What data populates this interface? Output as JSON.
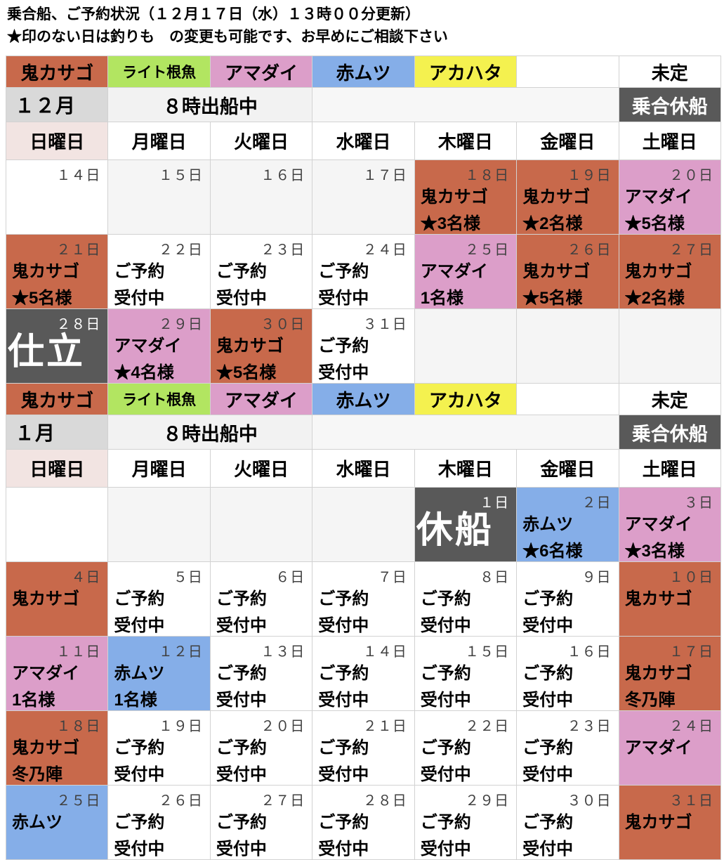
{
  "header": {
    "title": "乗合船、ご予約状況（１２月１７日（水）１３時００分更新）",
    "subtitle": "★印のない日は釣りも　の変更も可能です、お早めにご相談下さい"
  },
  "colors": {
    "orange": "#C8694B",
    "green": "#B2E561",
    "pink": "#DC9EC9",
    "blue": "#85AEE8",
    "yellow": "#F4F14F",
    "dark": "#595959",
    "white": "#FFFFFF",
    "empty": "#F5F5F5",
    "month_bg": "#D9D9D9",
    "sunday_header_bg": "#F2E4E2",
    "note_bg": "#F2F2F2",
    "date_text": "#404040"
  },
  "legend": {
    "items": [
      {
        "label": "鬼カサゴ",
        "color": "orange"
      },
      {
        "label": "ライト根魚",
        "color": "green"
      },
      {
        "label": "アマダイ",
        "color": "pink"
      },
      {
        "label": "赤ムツ",
        "color": "blue"
      },
      {
        "label": "アカハタ",
        "color": "yellow"
      },
      {
        "label": "",
        "color": "white"
      },
      {
        "label": "未定",
        "color": "white"
      }
    ]
  },
  "day_headers": [
    "日曜日",
    "月曜日",
    "火曜日",
    "水曜日",
    "木曜日",
    "金曜日",
    "土曜日"
  ],
  "months": [
    {
      "name": "１２月",
      "departure_note": "８時出船中",
      "closed_note": "乗合休船",
      "weeks": [
        [
          {
            "date": "１４日",
            "lines": [],
            "bg": "white"
          },
          {
            "date": "１５日",
            "lines": [],
            "bg": "empty"
          },
          {
            "date": "１６日",
            "lines": [],
            "bg": "empty"
          },
          {
            "date": "１７日",
            "lines": [],
            "bg": "empty"
          },
          {
            "date": "１８日",
            "lines": [
              "鬼カサゴ",
              "★3名様"
            ],
            "bg": "orange"
          },
          {
            "date": "１９日",
            "lines": [
              "鬼カサゴ",
              "★2名様"
            ],
            "bg": "orange"
          },
          {
            "date": "２０日",
            "lines": [
              "アマダイ",
              "★5名様"
            ],
            "bg": "pink"
          }
        ],
        [
          {
            "date": "２１日",
            "lines": [
              "鬼カサゴ",
              "★5名様"
            ],
            "bg": "orange"
          },
          {
            "date": "２２日",
            "lines": [
              "ご予約",
              "受付中"
            ],
            "bg": "white"
          },
          {
            "date": "２３日",
            "lines": [
              "ご予約",
              "受付中"
            ],
            "bg": "white"
          },
          {
            "date": "２４日",
            "lines": [
              "ご予約",
              "受付中"
            ],
            "bg": "white"
          },
          {
            "date": "２５日",
            "lines": [
              "アマダイ",
              "1名様"
            ],
            "bg": "pink"
          },
          {
            "date": "２６日",
            "lines": [
              "鬼カサゴ",
              "★5名様"
            ],
            "bg": "orange"
          },
          {
            "date": "２７日",
            "lines": [
              "鬼カサゴ",
              "★2名様"
            ],
            "bg": "orange"
          }
        ],
        [
          {
            "date": "２８日",
            "lines": [],
            "big": "仕立",
            "bg": "dark"
          },
          {
            "date": "２９日",
            "lines": [
              "アマダイ",
              "★4名様"
            ],
            "bg": "pink"
          },
          {
            "date": "３０日",
            "lines": [
              "鬼カサゴ",
              "★5名様"
            ],
            "bg": "orange"
          },
          {
            "date": "３１日",
            "lines": [
              "ご予約",
              "受付中"
            ],
            "bg": "white"
          },
          {
            "date": "",
            "lines": [],
            "bg": "empty"
          },
          {
            "date": "",
            "lines": [],
            "bg": "empty"
          },
          {
            "date": "",
            "lines": [],
            "bg": "empty"
          }
        ]
      ]
    },
    {
      "name": "１月",
      "departure_note": "８時出船中",
      "closed_note": "乗合休船",
      "weeks": [
        [
          {
            "date": "",
            "lines": [],
            "bg": "white"
          },
          {
            "date": "",
            "lines": [],
            "bg": "empty"
          },
          {
            "date": "",
            "lines": [],
            "bg": "empty"
          },
          {
            "date": "",
            "lines": [],
            "bg": "empty"
          },
          {
            "date": "１日",
            "lines": [],
            "big": "休船",
            "bg": "dark"
          },
          {
            "date": "２日",
            "lines": [
              "赤ムツ",
              "★6名様"
            ],
            "bg": "blue"
          },
          {
            "date": "３日",
            "lines": [
              "アマダイ",
              "★3名様"
            ],
            "bg": "pink"
          }
        ],
        [
          {
            "date": "４日",
            "lines": [
              "鬼カサゴ"
            ],
            "bg": "orange"
          },
          {
            "date": "５日",
            "lines": [
              "ご予約",
              "受付中"
            ],
            "bg": "white"
          },
          {
            "date": "６日",
            "lines": [
              "ご予約",
              "受付中"
            ],
            "bg": "white"
          },
          {
            "date": "７日",
            "lines": [
              "ご予約",
              "受付中"
            ],
            "bg": "white"
          },
          {
            "date": "８日",
            "lines": [
              "ご予約",
              "受付中"
            ],
            "bg": "white"
          },
          {
            "date": "９日",
            "lines": [
              "ご予約",
              "受付中"
            ],
            "bg": "white"
          },
          {
            "date": "１０日",
            "lines": [
              "鬼カサゴ"
            ],
            "bg": "orange"
          }
        ],
        [
          {
            "date": "１１日",
            "lines": [
              "アマダイ",
              "1名様"
            ],
            "bg": "pink"
          },
          {
            "date": "１２日",
            "lines": [
              "赤ムツ",
              "1名様"
            ],
            "bg": "blue"
          },
          {
            "date": "１３日",
            "lines": [
              "ご予約",
              "受付中"
            ],
            "bg": "white"
          },
          {
            "date": "１４日",
            "lines": [
              "ご予約",
              "受付中"
            ],
            "bg": "white"
          },
          {
            "date": "１５日",
            "lines": [
              "ご予約",
              "受付中"
            ],
            "bg": "white"
          },
          {
            "date": "１６日",
            "lines": [
              "ご予約",
              "受付中"
            ],
            "bg": "white"
          },
          {
            "date": "１７日",
            "lines": [
              "鬼カサゴ",
              "冬乃陣"
            ],
            "bg": "orange"
          }
        ],
        [
          {
            "date": "１８日",
            "lines": [
              "鬼カサゴ",
              "冬乃陣"
            ],
            "bg": "orange"
          },
          {
            "date": "１９日",
            "lines": [
              "ご予約",
              "受付中"
            ],
            "bg": "white"
          },
          {
            "date": "２０日",
            "lines": [
              "ご予約",
              "受付中"
            ],
            "bg": "white"
          },
          {
            "date": "２１日",
            "lines": [
              "ご予約",
              "受付中"
            ],
            "bg": "white"
          },
          {
            "date": "２２日",
            "lines": [
              "ご予約",
              "受付中"
            ],
            "bg": "white"
          },
          {
            "date": "２３日",
            "lines": [
              "ご予約",
              "受付中"
            ],
            "bg": "white"
          },
          {
            "date": "２４日",
            "lines": [
              "アマダイ"
            ],
            "bg": "pink"
          }
        ],
        [
          {
            "date": "２５日",
            "lines": [
              "赤ムツ"
            ],
            "bg": "blue"
          },
          {
            "date": "２６日",
            "lines": [
              "ご予約",
              "受付中"
            ],
            "bg": "white"
          },
          {
            "date": "２７日",
            "lines": [
              "ご予約",
              "受付中"
            ],
            "bg": "white"
          },
          {
            "date": "２８日",
            "lines": [
              "ご予約",
              "受付中"
            ],
            "bg": "white"
          },
          {
            "date": "２９日",
            "lines": [
              "ご予約",
              "受付中"
            ],
            "bg": "white"
          },
          {
            "date": "３０日",
            "lines": [
              "ご予約",
              "受付中"
            ],
            "bg": "white"
          },
          {
            "date": "３１日",
            "lines": [
              "鬼カサゴ"
            ],
            "bg": "orange"
          }
        ]
      ]
    }
  ]
}
